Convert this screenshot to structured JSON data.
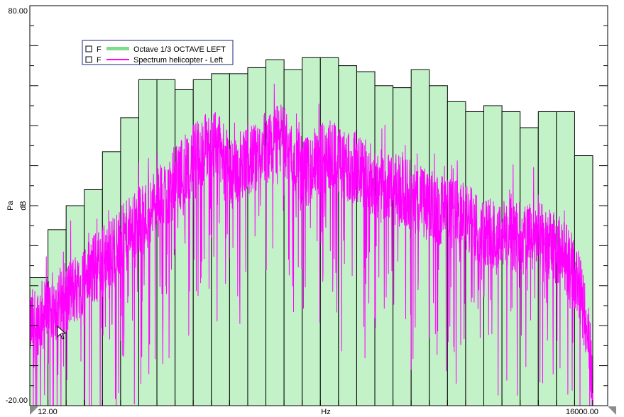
{
  "chart_data": {
    "type": "bar",
    "title": "",
    "xlabel": "Hz",
    "ylabel": "dB",
    "ylabel_secondary": "Pa",
    "y_max_label": "80.00",
    "y_min_label": "-20.00",
    "x_min_label": "12.00",
    "x_max_label": "16000.00",
    "ylim": [
      -20,
      80
    ],
    "x_scale": "log",
    "grid": false,
    "legend_position": "top-left",
    "legend": [
      {
        "prefix": "F",
        "name": "Octave 1/3 OCTAVE LEFT",
        "color": "#7fdc8f"
      },
      {
        "prefix": "F",
        "name": "Spectrum helicopter - Left",
        "color": "#ff00ff"
      }
    ],
    "bar_fill": "#c3f2c9",
    "bar_edge": "#000000",
    "spectrum_color": "#ff00ff",
    "bar_values": [
      12.0,
      24.0,
      30.0,
      34.0,
      43.5,
      52.0,
      61.5,
      61.5,
      59.0,
      61.5,
      63.0,
      63.0,
      64.5,
      66.5,
      64.0,
      67.0,
      67.0,
      65.0,
      63.5,
      60.0,
      59.5,
      64.0,
      60.0,
      56.0,
      53.5,
      55.0,
      53.5,
      49.5,
      53.5,
      53.5,
      42.5
    ],
    "spectrum_envelope": [
      {
        "x": 12,
        "y": 0
      },
      {
        "x": 20,
        "y": 8
      },
      {
        "x": 30,
        "y": 16
      },
      {
        "x": 45,
        "y": 24
      },
      {
        "x": 60,
        "y": 30
      },
      {
        "x": 90,
        "y": 40
      },
      {
        "x": 125,
        "y": 46
      },
      {
        "x": 160,
        "y": 38
      },
      {
        "x": 220,
        "y": 43
      },
      {
        "x": 300,
        "y": 47
      },
      {
        "x": 400,
        "y": 38
      },
      {
        "x": 550,
        "y": 43
      },
      {
        "x": 700,
        "y": 40
      },
      {
        "x": 1000,
        "y": 36
      },
      {
        "x": 1500,
        "y": 33
      },
      {
        "x": 2000,
        "y": 30
      },
      {
        "x": 3000,
        "y": 27
      },
      {
        "x": 4000,
        "y": 24
      },
      {
        "x": 6000,
        "y": 22
      },
      {
        "x": 8000,
        "y": 22
      },
      {
        "x": 11000,
        "y": 18
      },
      {
        "x": 13000,
        "y": 12
      },
      {
        "x": 15000,
        "y": 0
      },
      {
        "x": 16000,
        "y": -15
      }
    ]
  }
}
